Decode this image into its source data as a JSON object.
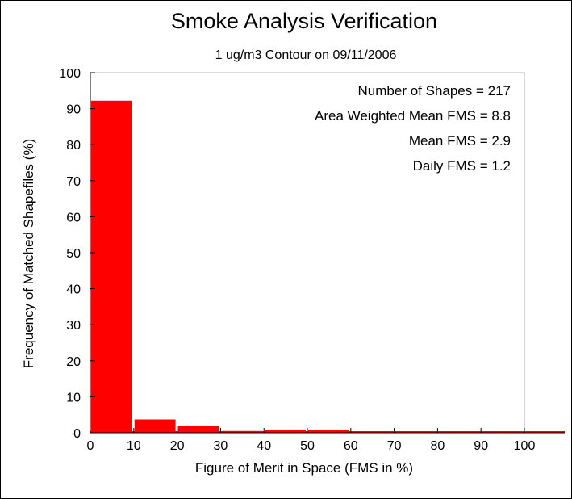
{
  "chart_data": {
    "type": "bar",
    "title": "Smoke Analysis Verification",
    "subtitle": "1 ug/m3 Contour on 09/11/2006",
    "xlabel": "Figure of Merit in Space (FMS in %)",
    "ylabel": "Frequency of Matched Shapefiles (%)",
    "xlim": [
      0,
      100
    ],
    "ylim": [
      0,
      100
    ],
    "x_ticks": [
      "0",
      "10",
      "20",
      "30",
      "40",
      "50",
      "60",
      "70",
      "80",
      "90",
      "100"
    ],
    "y_ticks": [
      "0",
      "10",
      "20",
      "30",
      "40",
      "50",
      "60",
      "70",
      "80",
      "90",
      "100"
    ],
    "bin_width": 10,
    "bins": [
      {
        "start": 0,
        "end": 10,
        "value": 92.2
      },
      {
        "start": 10,
        "end": 20,
        "value": 3.7
      },
      {
        "start": 20,
        "end": 30,
        "value": 1.8
      },
      {
        "start": 30,
        "end": 40,
        "value": 0.5
      },
      {
        "start": 40,
        "end": 50,
        "value": 0.9
      },
      {
        "start": 50,
        "end": 60,
        "value": 0.9
      },
      {
        "start": 60,
        "end": 70,
        "value": 0
      },
      {
        "start": 70,
        "end": 80,
        "value": 0
      },
      {
        "start": 80,
        "end": 90,
        "value": 0
      },
      {
        "start": 90,
        "end": 100,
        "value": 0
      }
    ],
    "annotations": [
      "Number of Shapes = 217",
      "Area Weighted Mean FMS = 8.8",
      "Mean FMS = 2.9",
      "Daily FMS = 1.2"
    ],
    "bar_color": "#ff0000",
    "grid": false
  }
}
